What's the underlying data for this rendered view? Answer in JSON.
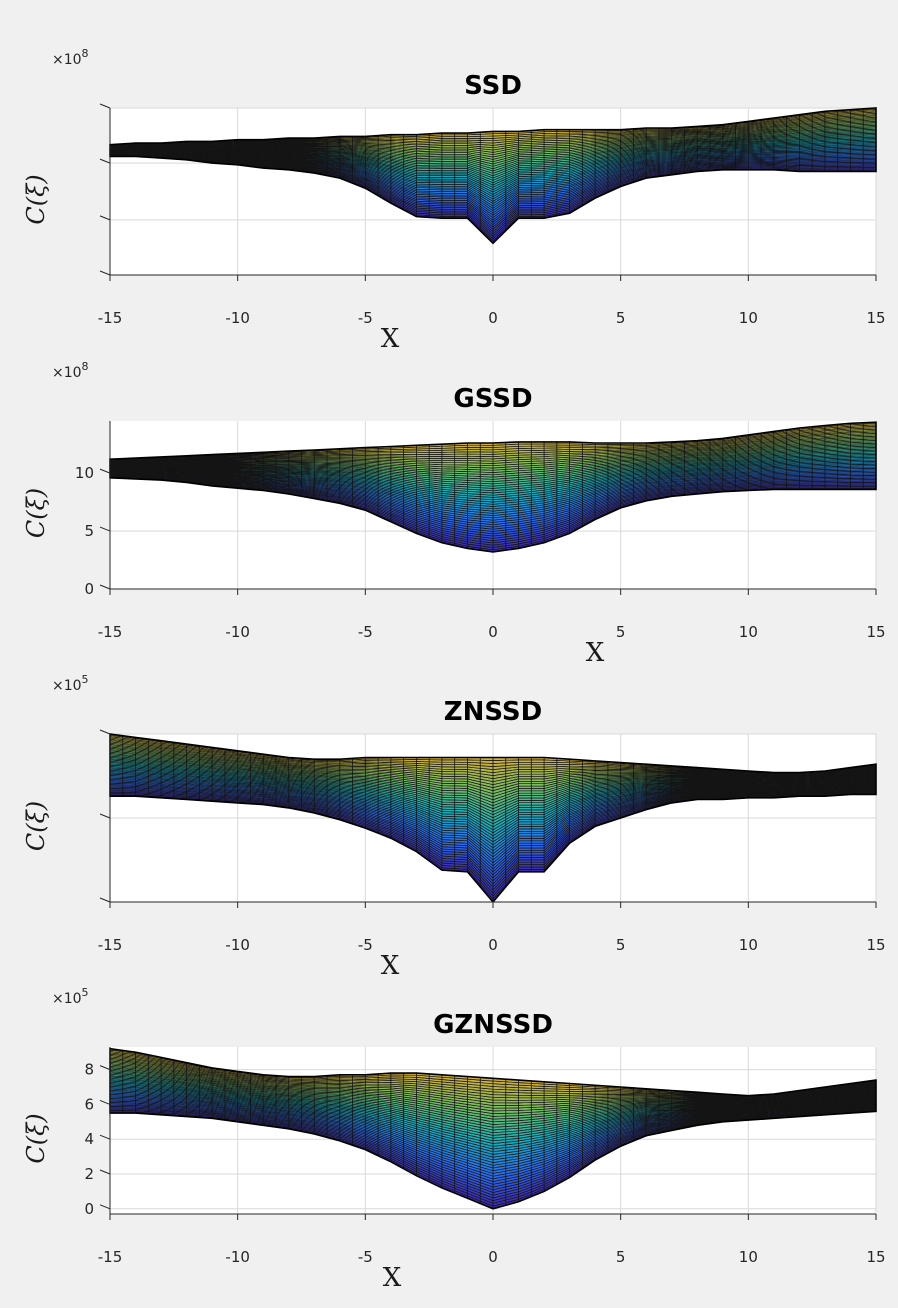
{
  "chart_data": [
    {
      "type": "area",
      "title": "SSD",
      "xlabel": "X",
      "ylabel": "C(ξ)",
      "exponent_base": "×10",
      "exponent_power": "8",
      "xlim": [
        -15,
        15
      ],
      "ylim": [
        0,
        1
      ],
      "xticks": [
        -15,
        -10,
        -5,
        0,
        5,
        10,
        15
      ],
      "xtick_labels": [
        "-15",
        "-10",
        "-5",
        "0",
        "5",
        "10",
        "15"
      ],
      "ytick_positions": [
        0,
        0.33,
        0.67,
        1
      ],
      "ytick_labels": [
        "",
        "",
        "",
        ""
      ],
      "grid": true,
      "x": [
        -15,
        -14,
        -13,
        -12,
        -11,
        -10,
        -9,
        -8,
        -7,
        -6,
        -5,
        -4,
        -3,
        -2,
        -1,
        0,
        1,
        2,
        3,
        4,
        5,
        6,
        7,
        8,
        9,
        10,
        11,
        12,
        13,
        14,
        15
      ],
      "series": [
        {
          "values": [
            0.78,
            0.79,
            0.79,
            0.8,
            0.8,
            0.81,
            0.81,
            0.82,
            0.82,
            0.83,
            0.83,
            0.84,
            0.84,
            0.85,
            0.85,
            0.86,
            0.86,
            0.87,
            0.87,
            0.87,
            0.87,
            0.88,
            0.88,
            0.89,
            0.9,
            0.92,
            0.94,
            0.96,
            0.98,
            0.99,
            1.0
          ]
        },
        {
          "values": [
            0.71,
            0.71,
            0.7,
            0.69,
            0.67,
            0.66,
            0.64,
            0.63,
            0.61,
            0.58,
            0.52,
            0.43,
            0.35,
            0.34,
            0.34,
            0.19,
            0.34,
            0.34,
            0.37,
            0.46,
            0.53,
            0.58,
            0.6,
            0.62,
            0.63,
            0.63,
            0.63,
            0.62,
            0.62,
            0.62,
            0.62
          ]
        }
      ]
    },
    {
      "type": "area",
      "title": "GSSD",
      "xlabel": "X",
      "ylabel": "C(ξ)",
      "exponent_base": "×10",
      "exponent_power": "8",
      "xlim": [
        -15,
        15
      ],
      "ylim": [
        0,
        14.5
      ],
      "xticks": [
        -15,
        -10,
        -5,
        0,
        5,
        10,
        15
      ],
      "xtick_labels": [
        "-15",
        "-10",
        "-5",
        "0",
        "5",
        "10",
        "15"
      ],
      "yticks": [
        0,
        5,
        10
      ],
      "ytick_labels": [
        "0",
        "5",
        "10"
      ],
      "grid": true,
      "x": [
        -15,
        -14,
        -13,
        -12,
        -11,
        -10,
        -9,
        -8,
        -7,
        -6,
        -5,
        -4,
        -3,
        -2,
        -1,
        0,
        1,
        2,
        3,
        4,
        5,
        6,
        7,
        8,
        9,
        10,
        11,
        12,
        13,
        14,
        15
      ],
      "series": [
        {
          "values": [
            11.2,
            11.3,
            11.4,
            11.5,
            11.6,
            11.7,
            11.8,
            11.9,
            12.0,
            12.1,
            12.2,
            12.3,
            12.4,
            12.5,
            12.6,
            12.6,
            12.7,
            12.7,
            12.7,
            12.6,
            12.6,
            12.6,
            12.7,
            12.8,
            13.0,
            13.3,
            13.6,
            13.9,
            14.1,
            14.3,
            14.4
          ]
        },
        {
          "values": [
            9.6,
            9.5,
            9.4,
            9.2,
            8.9,
            8.7,
            8.5,
            8.2,
            7.8,
            7.4,
            6.8,
            5.8,
            4.8,
            4.0,
            3.5,
            3.2,
            3.5,
            4.0,
            4.8,
            6.0,
            7.0,
            7.6,
            8.0,
            8.2,
            8.4,
            8.5,
            8.6,
            8.6,
            8.6,
            8.6,
            8.6
          ]
        }
      ]
    },
    {
      "type": "area",
      "title": "ZNSSD",
      "xlabel": "X",
      "ylabel": "C(ξ)",
      "exponent_base": "×10",
      "exponent_power": "5",
      "xlim": [
        -15,
        15
      ],
      "ylim": [
        0,
        1
      ],
      "xticks": [
        -15,
        -10,
        -5,
        0,
        5,
        10,
        15
      ],
      "xtick_labels": [
        "-15",
        "-10",
        "-5",
        "0",
        "5",
        "10",
        "15"
      ],
      "ytick_positions": [
        0,
        0.5,
        1
      ],
      "ytick_labels": [
        "",
        "",
        ""
      ],
      "grid": true,
      "x": [
        -15,
        -14,
        -13,
        -12,
        -11,
        -10,
        -9,
        -8,
        -7,
        -6,
        -5,
        -4,
        -3,
        -2,
        -1,
        0,
        1,
        2,
        3,
        4,
        5,
        6,
        7,
        8,
        9,
        10,
        11,
        12,
        13,
        14,
        15
      ],
      "series": [
        {
          "values": [
            1.0,
            0.98,
            0.96,
            0.94,
            0.92,
            0.9,
            0.88,
            0.86,
            0.85,
            0.85,
            0.86,
            0.86,
            0.86,
            0.86,
            0.86,
            0.86,
            0.86,
            0.86,
            0.85,
            0.84,
            0.83,
            0.82,
            0.81,
            0.8,
            0.79,
            0.78,
            0.77,
            0.77,
            0.78,
            0.8,
            0.82
          ]
        },
        {
          "values": [
            0.63,
            0.63,
            0.62,
            0.61,
            0.6,
            0.59,
            0.58,
            0.56,
            0.53,
            0.49,
            0.44,
            0.38,
            0.3,
            0.19,
            0.18,
            0.0,
            0.18,
            0.18,
            0.35,
            0.45,
            0.5,
            0.55,
            0.59,
            0.61,
            0.61,
            0.62,
            0.62,
            0.63,
            0.63,
            0.64,
            0.64
          ]
        }
      ]
    },
    {
      "type": "area",
      "title": "GZNSSD",
      "xlabel": "X",
      "ylabel": "C(ξ)",
      "exponent_base": "×10",
      "exponent_power": "5",
      "xlim": [
        -15,
        15
      ],
      "ylim": [
        -0.3,
        9.3
      ],
      "xticks": [
        -15,
        -10,
        -5,
        0,
        5,
        10,
        15
      ],
      "xtick_labels": [
        "-15",
        "-10",
        "-5",
        "0",
        "5",
        "10",
        "15"
      ],
      "yticks": [
        0,
        2,
        4,
        6,
        8
      ],
      "ytick_labels": [
        "0",
        "2",
        "4",
        "6",
        "8"
      ],
      "grid": true,
      "x": [
        -15,
        -14,
        -13,
        -12,
        -11,
        -10,
        -9,
        -8,
        -7,
        -6,
        -5,
        -4,
        -3,
        -2,
        -1,
        0,
        1,
        2,
        3,
        4,
        5,
        6,
        7,
        8,
        9,
        10,
        11,
        12,
        13,
        14,
        15
      ],
      "series": [
        {
          "values": [
            9.2,
            9.0,
            8.7,
            8.4,
            8.1,
            7.9,
            7.7,
            7.6,
            7.6,
            7.7,
            7.7,
            7.8,
            7.8,
            7.7,
            7.6,
            7.5,
            7.4,
            7.3,
            7.2,
            7.1,
            7.0,
            6.9,
            6.8,
            6.7,
            6.6,
            6.5,
            6.6,
            6.8,
            7.0,
            7.2,
            7.4
          ]
        },
        {
          "values": [
            5.5,
            5.5,
            5.4,
            5.3,
            5.2,
            5.0,
            4.8,
            4.6,
            4.3,
            3.9,
            3.4,
            2.7,
            1.9,
            1.2,
            0.6,
            0.0,
            0.4,
            1.0,
            1.8,
            2.8,
            3.6,
            4.2,
            4.5,
            4.8,
            5.0,
            5.1,
            5.2,
            5.3,
            5.4,
            5.5,
            5.6
          ]
        }
      ]
    }
  ]
}
